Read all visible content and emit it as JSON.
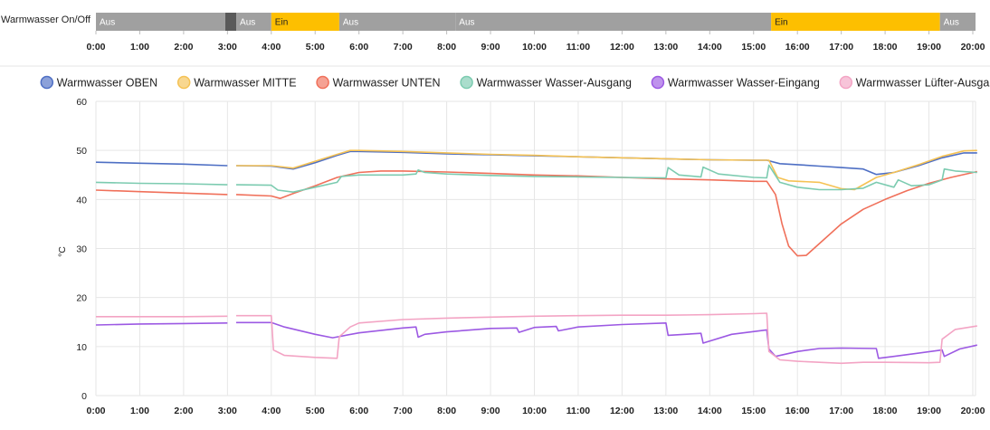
{
  "chart_data": [
    {
      "type": "timeline",
      "label": "Warmwasser On/Off",
      "x_ticks": [
        "0:00",
        "1:00",
        "2:00",
        "3:00",
        "4:00",
        "5:00",
        "6:00",
        "7:00",
        "8:00",
        "9:00",
        "10:00",
        "11:00",
        "12:00",
        "13:00",
        "14:00",
        "15:00",
        "16:00",
        "17:00",
        "18:00",
        "19:00",
        "20:00"
      ],
      "colors": {
        "Aus": "#a0a0a0",
        "Ein": "#fdbf00",
        "unknown": "#5a5a5a"
      },
      "segments": [
        {
          "start": 0.0,
          "end": 2.95,
          "state": "Aus",
          "text": "Aus"
        },
        {
          "start": 2.95,
          "end": 3.2,
          "state": "unknown",
          "text": ""
        },
        {
          "start": 3.2,
          "end": 4.0,
          "state": "Aus",
          "text": "Aus"
        },
        {
          "start": 4.0,
          "end": 5.55,
          "state": "Ein",
          "text": "Ein"
        },
        {
          "start": 5.55,
          "end": 8.2,
          "state": "Aus",
          "text": "Aus"
        },
        {
          "start": 8.2,
          "end": 15.4,
          "state": "Aus",
          "text": "Aus"
        },
        {
          "start": 15.4,
          "end": 19.25,
          "state": "Ein",
          "text": "Ein"
        },
        {
          "start": 19.25,
          "end": 20.1,
          "state": "Aus",
          "text": "Aus"
        }
      ]
    },
    {
      "type": "line",
      "ylabel": "°C",
      "ylim": [
        0,
        60
      ],
      "y_ticks": [
        0,
        10,
        20,
        30,
        40,
        50,
        60
      ],
      "xlim": [
        0,
        20.1
      ],
      "x_ticks": [
        "0:00",
        "1:00",
        "2:00",
        "3:00",
        "4:00",
        "5:00",
        "6:00",
        "7:00",
        "8:00",
        "9:00",
        "10:00",
        "11:00",
        "12:00",
        "13:00",
        "14:00",
        "15:00",
        "16:00",
        "17:00",
        "18:00",
        "19:00",
        "20:00"
      ],
      "grid": true,
      "legend_position": "top",
      "gap": [
        3.0,
        3.2
      ],
      "series": [
        {
          "name": "Warmwasser OBEN",
          "color": "#4e6fc4",
          "points": [
            [
              0,
              47.6
            ],
            [
              1,
              47.4
            ],
            [
              2,
              47.2
            ],
            [
              3,
              46.9
            ],
            [
              3.2,
              46.9
            ],
            [
              4,
              46.8
            ],
            [
              4.5,
              46.2
            ],
            [
              5,
              47.5
            ],
            [
              5.5,
              49.0
            ],
            [
              5.8,
              49.8
            ],
            [
              6,
              49.8
            ],
            [
              7,
              49.6
            ],
            [
              8,
              49.3
            ],
            [
              9,
              49.1
            ],
            [
              10,
              48.9
            ],
            [
              11,
              48.7
            ],
            [
              12,
              48.5
            ],
            [
              13,
              48.3
            ],
            [
              14,
              48.1
            ],
            [
              15,
              48.0
            ],
            [
              15.3,
              48.0
            ],
            [
              15.6,
              47.3
            ],
            [
              16,
              47.1
            ],
            [
              16.5,
              46.8
            ],
            [
              17,
              46.5
            ],
            [
              17.5,
              46.2
            ],
            [
              17.8,
              45.1
            ],
            [
              18.2,
              45.5
            ],
            [
              18.8,
              47.0
            ],
            [
              19.3,
              48.5
            ],
            [
              19.8,
              49.5
            ],
            [
              20.1,
              49.5
            ]
          ]
        },
        {
          "name": "Warmwasser MITTE",
          "color": "#f5c254",
          "points": [
            [
              3.2,
              46.9
            ],
            [
              4,
              46.9
            ],
            [
              4.5,
              46.4
            ],
            [
              5,
              47.8
            ],
            [
              5.5,
              49.2
            ],
            [
              5.8,
              50.0
            ],
            [
              6,
              50.0
            ],
            [
              7,
              49.8
            ],
            [
              8,
              49.5
            ],
            [
              9,
              49.2
            ],
            [
              10,
              49.0
            ],
            [
              11,
              48.7
            ],
            [
              12,
              48.5
            ],
            [
              13,
              48.3
            ],
            [
              14,
              48.1
            ],
            [
              15,
              48.0
            ],
            [
              15.35,
              48.0
            ],
            [
              15.55,
              44.5
            ],
            [
              15.8,
              43.8
            ],
            [
              16.5,
              43.5
            ],
            [
              17,
              42.2
            ],
            [
              17.3,
              42.0
            ],
            [
              17.8,
              44.5
            ],
            [
              18.2,
              45.5
            ],
            [
              18.8,
              47.2
            ],
            [
              19.3,
              48.8
            ],
            [
              19.8,
              49.9
            ],
            [
              20.1,
              50.0
            ]
          ]
        },
        {
          "name": "Warmwasser UNTEN",
          "color": "#f0705a",
          "points": [
            [
              0,
              41.9
            ],
            [
              1,
              41.6
            ],
            [
              2,
              41.3
            ],
            [
              3,
              41.0
            ],
            [
              3.2,
              41.0
            ],
            [
              4,
              40.7
            ],
            [
              4.2,
              40.2
            ],
            [
              4.5,
              41.2
            ],
            [
              5,
              42.8
            ],
            [
              5.5,
              44.5
            ],
            [
              6,
              45.5
            ],
            [
              6.5,
              45.8
            ],
            [
              7,
              45.8
            ],
            [
              8,
              45.6
            ],
            [
              9,
              45.3
            ],
            [
              10,
              45.0
            ],
            [
              11,
              44.8
            ],
            [
              12,
              44.5
            ],
            [
              13,
              44.2
            ],
            [
              14,
              44.0
            ],
            [
              15,
              43.7
            ],
            [
              15.3,
              43.7
            ],
            [
              15.5,
              41.0
            ],
            [
              15.65,
              35.0
            ],
            [
              15.8,
              30.5
            ],
            [
              16,
              28.5
            ],
            [
              16.2,
              28.6
            ],
            [
              16.5,
              31.0
            ],
            [
              17,
              35.0
            ],
            [
              17.5,
              38.0
            ],
            [
              18,
              40.0
            ],
            [
              18.5,
              41.8
            ],
            [
              19,
              43.3
            ],
            [
              19.5,
              44.5
            ],
            [
              20.1,
              45.7
            ]
          ]
        },
        {
          "name": "Warmwasser Wasser-Ausgang",
          "color": "#7ccbb0",
          "points": [
            [
              0,
              43.5
            ],
            [
              1,
              43.3
            ],
            [
              2,
              43.2
            ],
            [
              3,
              43.0
            ],
            [
              3.2,
              43.0
            ],
            [
              4,
              42.9
            ],
            [
              4.15,
              41.9
            ],
            [
              4.5,
              41.5
            ],
            [
              5,
              42.5
            ],
            [
              5.5,
              43.5
            ],
            [
              5.6,
              44.7
            ],
            [
              6,
              45.0
            ],
            [
              7,
              45.0
            ],
            [
              7.3,
              45.2
            ],
            [
              7.35,
              46.0
            ],
            [
              7.5,
              45.5
            ],
            [
              8,
              45.2
            ],
            [
              9,
              44.9
            ],
            [
              10,
              44.7
            ],
            [
              11,
              44.6
            ],
            [
              12,
              44.5
            ],
            [
              13,
              44.4
            ],
            [
              13.05,
              46.5
            ],
            [
              13.3,
              45.0
            ],
            [
              13.8,
              44.6
            ],
            [
              13.85,
              46.6
            ],
            [
              14.2,
              45.2
            ],
            [
              15,
              44.5
            ],
            [
              15.3,
              44.4
            ],
            [
              15.35,
              47.0
            ],
            [
              15.6,
              43.5
            ],
            [
              16,
              42.5
            ],
            [
              16.5,
              42.0
            ],
            [
              17,
              42.0
            ],
            [
              17.5,
              42.3
            ],
            [
              17.8,
              43.5
            ],
            [
              18.2,
              42.5
            ],
            [
              18.3,
              44.0
            ],
            [
              18.6,
              42.8
            ],
            [
              19,
              43.0
            ],
            [
              19.3,
              44.0
            ],
            [
              19.35,
              46.2
            ],
            [
              19.6,
              45.8
            ],
            [
              20.1,
              45.5
            ]
          ]
        },
        {
          "name": "Warmwasser Wasser-Eingang",
          "color": "#9c59e3",
          "points": [
            [
              0,
              14.4
            ],
            [
              1,
              14.6
            ],
            [
              2,
              14.7
            ],
            [
              3,
              14.8
            ],
            [
              3.2,
              14.9
            ],
            [
              4,
              14.9
            ],
            [
              4.3,
              14.0
            ],
            [
              5,
              12.5
            ],
            [
              5.4,
              11.8
            ],
            [
              6,
              12.8
            ],
            [
              7,
              13.8
            ],
            [
              7.3,
              14.0
            ],
            [
              7.35,
              11.9
            ],
            [
              7.5,
              12.5
            ],
            [
              8,
              13.0
            ],
            [
              9,
              13.7
            ],
            [
              9.6,
              13.8
            ],
            [
              9.65,
              12.9
            ],
            [
              10,
              13.9
            ],
            [
              10.5,
              14.1
            ],
            [
              10.55,
              13.2
            ],
            [
              11,
              14.0
            ],
            [
              12,
              14.5
            ],
            [
              13,
              14.8
            ],
            [
              13.05,
              12.3
            ],
            [
              13.8,
              12.7
            ],
            [
              13.85,
              10.7
            ],
            [
              14.5,
              12.5
            ],
            [
              15.3,
              13.4
            ],
            [
              15.35,
              9.5
            ],
            [
              15.5,
              8.0
            ],
            [
              16,
              9.0
            ],
            [
              16.5,
              9.6
            ],
            [
              17,
              9.7
            ],
            [
              17.8,
              9.6
            ],
            [
              17.85,
              7.6
            ],
            [
              18.2,
              8.0
            ],
            [
              19.3,
              9.3
            ],
            [
              19.35,
              8.0
            ],
            [
              19.7,
              9.5
            ],
            [
              20.1,
              10.3
            ]
          ]
        },
        {
          "name": "Warmwasser Lüfter-Ausgang",
          "color": "#f3a4c4",
          "points": [
            [
              0,
              16.1
            ],
            [
              1,
              16.1
            ],
            [
              2,
              16.1
            ],
            [
              3,
              16.2
            ],
            [
              3.2,
              16.3
            ],
            [
              4,
              16.3
            ],
            [
              4.05,
              9.3
            ],
            [
              4.3,
              8.2
            ],
            [
              5,
              7.8
            ],
            [
              5.5,
              7.6
            ],
            [
              5.55,
              12.0
            ],
            [
              5.8,
              14.0
            ],
            [
              6,
              14.8
            ],
            [
              7,
              15.5
            ],
            [
              8,
              15.8
            ],
            [
              9,
              16.0
            ],
            [
              10,
              16.2
            ],
            [
              11,
              16.3
            ],
            [
              12,
              16.4
            ],
            [
              13,
              16.4
            ],
            [
              14,
              16.5
            ],
            [
              15,
              16.7
            ],
            [
              15.3,
              16.8
            ],
            [
              15.35,
              9.0
            ],
            [
              15.6,
              7.3
            ],
            [
              16,
              7.0
            ],
            [
              17,
              6.6
            ],
            [
              17.5,
              6.8
            ],
            [
              18,
              6.8
            ],
            [
              19,
              6.7
            ],
            [
              19.25,
              6.8
            ],
            [
              19.3,
              11.5
            ],
            [
              19.6,
              13.5
            ],
            [
              20.1,
              14.2
            ]
          ]
        }
      ]
    }
  ]
}
